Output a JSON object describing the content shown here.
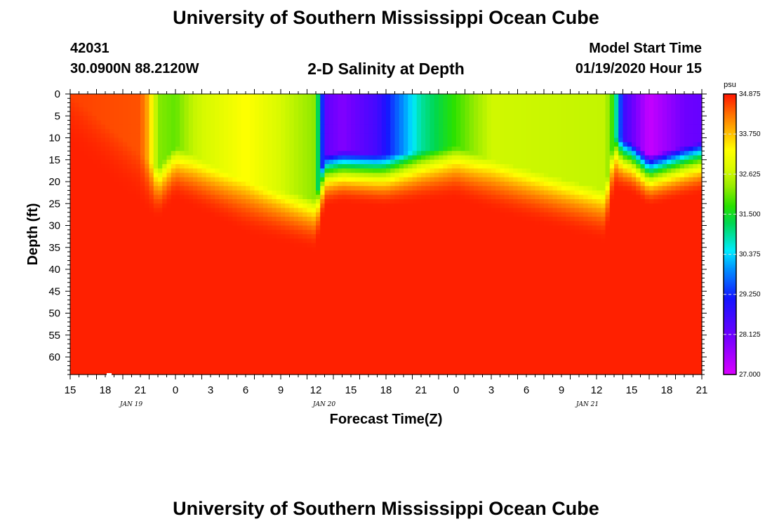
{
  "page": {
    "title": "University of Southern Mississippi Ocean Cube",
    "footer_title": "University of Southern Mississippi Ocean Cube",
    "station_id": "42031",
    "location": "30.0900N 88.2120W",
    "plot_title": "2-D Salinity at Depth",
    "model_start_label": "Model Start Time",
    "model_start_value": "01/19/2020 Hour 15"
  },
  "chart_data": {
    "type": "heatmap",
    "title": "2-D Salinity at Depth",
    "xlabel": "Forecast Time(Z)",
    "ylabel": "Depth (ft)",
    "x_hours": [
      0,
      72
    ],
    "x_tick_labels": [
      "15",
      "18",
      "21",
      "0",
      "3",
      "6",
      "9",
      "12",
      "15",
      "18",
      "21",
      "0",
      "3",
      "6",
      "9",
      "12",
      "15",
      "18",
      "21"
    ],
    "date_labels": [
      {
        "text": "JAN 19",
        "hour": 6
      },
      {
        "text": "JAN 20",
        "hour": 28
      },
      {
        "text": "JAN 21",
        "hour": 58
      }
    ],
    "y_range": [
      0,
      64
    ],
    "y_ticks": [
      0,
      5,
      10,
      15,
      20,
      25,
      30,
      35,
      40,
      45,
      50,
      55,
      60
    ],
    "colorbar": {
      "units": "psu",
      "min": 27.0,
      "max": 34.875,
      "tick_labels": [
        "34.875",
        "33.750",
        "32.625",
        "31.500",
        "30.375",
        "29.250",
        "28.125",
        "27.000"
      ]
    },
    "surface_salinity_profile": {
      "hours": [
        0,
        8,
        9,
        10,
        12,
        14,
        20,
        28,
        29,
        31,
        35,
        40,
        48,
        61,
        62,
        63,
        66,
        70,
        72
      ],
      "psu": [
        34.6,
        34.5,
        33.8,
        32.2,
        32.0,
        32.6,
        33.3,
        32.2,
        28.3,
        27.9,
        28.6,
        30.9,
        32.7,
        32.6,
        31.6,
        28.7,
        27.2,
        28.1,
        28.2
      ]
    },
    "halocline_depth_ft": {
      "hours": [
        0,
        10,
        12,
        14,
        20,
        28,
        29,
        31,
        36,
        44,
        48,
        61,
        62,
        64,
        66,
        68,
        72
      ],
      "depth": [
        0,
        17,
        12,
        14,
        20,
        24,
        14,
        13,
        14,
        12,
        15,
        22,
        10,
        11,
        14,
        13,
        11
      ]
    },
    "deep_salinity_psu": 34.8
  }
}
